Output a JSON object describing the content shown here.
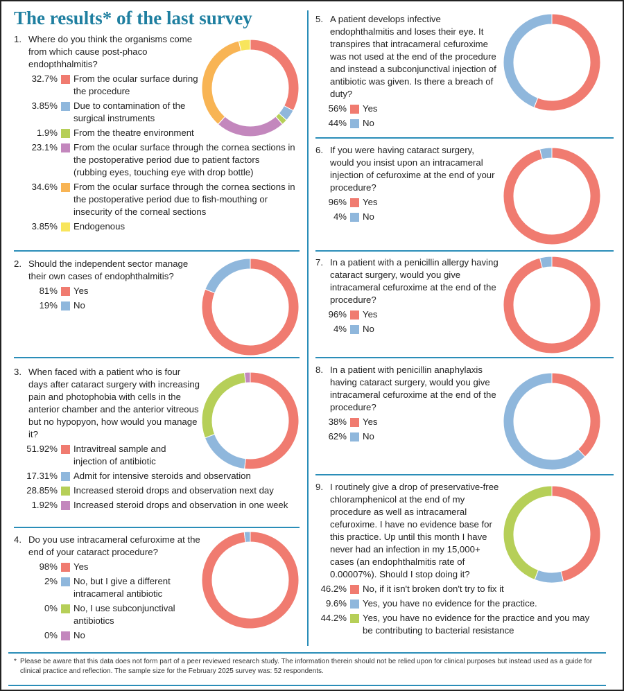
{
  "title": "The results* of the last survey",
  "footnote": {
    "marker": "*",
    "text": "Please be aware that this data does not form part of a peer reviewed research study. The information therein should not be relied upon for clinical purposes but instead used as a guide for clinical practice and reflection. The sample size for the February 2025 survey was: 52 respondents."
  },
  "colors": {
    "red": "#f07b70",
    "blue": "#8fb7dc",
    "green": "#b6cf58",
    "purple": "#c387bd",
    "orange": "#f8b454",
    "yellow": "#f8e55c",
    "accent": "#1f7fa0",
    "rule": "#2a8db8"
  },
  "chart_data": [
    {
      "type": "pie",
      "number": "1.",
      "title": "Where do you think the organisms come from which cause post-phaco endopthhalmitis?",
      "series": [
        {
          "label": "From the ocular surface during the procedure",
          "pct_label": "32.7%",
          "value": 32.7,
          "color": "#f07b70"
        },
        {
          "label": "Due to contamination of the surgical instruments",
          "pct_label": "3.85%",
          "value": 3.85,
          "color": "#8fb7dc"
        },
        {
          "label": "From the theatre environment",
          "pct_label": "1.9%",
          "value": 1.9,
          "color": "#b6cf58"
        },
        {
          "label": "From the ocular surface through the cornea sections in the postoperative period due to patient factors (rubbing eyes, touching eye with drop bottle)",
          "pct_label": "23.1%",
          "value": 23.1,
          "color": "#c387bd"
        },
        {
          "label": "From the ocular surface through the cornea sections in the postoperative period due to fish-mouthing or insecurity of the corneal sections",
          "pct_label": "34.6%",
          "value": 34.6,
          "color": "#f8b454"
        },
        {
          "label": "Endogenous",
          "pct_label": "3.85%",
          "value": 3.85,
          "color": "#f8e55c"
        }
      ]
    },
    {
      "type": "pie",
      "number": "2.",
      "title": "Should the independent sector manage their own cases of endophthalmitis?",
      "series": [
        {
          "label": "Yes",
          "pct_label": "81%",
          "value": 81,
          "color": "#f07b70"
        },
        {
          "label": "No",
          "pct_label": "19%",
          "value": 19,
          "color": "#8fb7dc"
        }
      ]
    },
    {
      "type": "pie",
      "number": "3.",
      "title": "When faced with a patient who is four days after cataract surgery with increasing pain and photophobia with cells in the anterior chamber and the anterior vitreous but no hypopyon, how would you manage it?",
      "series": [
        {
          "label": "Intravitreal sample and injection of antibiotic",
          "pct_label": "51.92%",
          "value": 51.92,
          "color": "#f07b70"
        },
        {
          "label": "Admit for intensive steroids and observation",
          "pct_label": "17.31%",
          "value": 17.31,
          "color": "#8fb7dc"
        },
        {
          "label": "Increased steroid drops and observation next day",
          "pct_label": "28.85%",
          "value": 28.85,
          "color": "#b6cf58"
        },
        {
          "label": "Increased steroid drops and observation in one week",
          "pct_label": "1.92%",
          "value": 1.92,
          "color": "#c387bd"
        }
      ]
    },
    {
      "type": "pie",
      "number": "4.",
      "title": "Do you use intracameral cefuroxime at the end of your cataract procedure?",
      "series": [
        {
          "label": "Yes",
          "pct_label": "98%",
          "value": 98,
          "color": "#f07b70"
        },
        {
          "label": "No, but I give a different intracameral antibiotic",
          "pct_label": "2%",
          "value": 2,
          "color": "#8fb7dc"
        },
        {
          "label": "No, I use subconjunctival antibiotics",
          "pct_label": "0%",
          "value": 0,
          "color": "#b6cf58"
        },
        {
          "label": "No",
          "pct_label": "0%",
          "value": 0,
          "color": "#c387bd"
        }
      ]
    },
    {
      "type": "pie",
      "number": "5.",
      "title": "A patient develops infective endophthalmitis and loses their eye. It transpires that intracameral cefuroxime was not used at the end of the procedure and instead a subconjunctival injection of antibiotic was given. Is there a breach of duty?",
      "series": [
        {
          "label": "Yes",
          "pct_label": "56%",
          "value": 56,
          "color": "#f07b70"
        },
        {
          "label": "No",
          "pct_label": "44%",
          "value": 44,
          "color": "#8fb7dc"
        }
      ]
    },
    {
      "type": "pie",
      "number": "6.",
      "title": "If you were having cataract surgery, would you insist upon an intracameral injection of cefuroxime at the end of your procedure?",
      "series": [
        {
          "label": "Yes",
          "pct_label": "96%",
          "value": 96,
          "color": "#f07b70"
        },
        {
          "label": "No",
          "pct_label": "4%",
          "value": 4,
          "color": "#8fb7dc"
        }
      ]
    },
    {
      "type": "pie",
      "number": "7.",
      "title": "In a patient with a penicillin allergy having cataract surgery, would you give intracameral cefuroxime at the end of the procedure?",
      "series": [
        {
          "label": "Yes",
          "pct_label": "96%",
          "value": 96,
          "color": "#f07b70"
        },
        {
          "label": "No",
          "pct_label": "4%",
          "value": 4,
          "color": "#8fb7dc"
        }
      ]
    },
    {
      "type": "pie",
      "number": "8.",
      "title": "In a patient with penicillin anaphylaxis having cataract surgery, would you give intracameral cefuroxime at the end of the procedure?",
      "series": [
        {
          "label": "Yes",
          "pct_label": "38%",
          "value": 38,
          "color": "#f07b70"
        },
        {
          "label": "No",
          "pct_label": "62%",
          "value": 62,
          "color": "#8fb7dc"
        }
      ]
    },
    {
      "type": "pie",
      "number": "9.",
      "title": "I routinely give a drop of preservative-free chloramphenicol at the end of my procedure as well as intracameral cefuroxime. I have no evidence base for this practice. Up until this month I have never had an infection in my 15,000+ cases (an endophthalmitis rate of 0.00007%). Should I stop doing it?",
      "series": [
        {
          "label": "No, if it isn't broken don't try to fix it",
          "pct_label": "46.2%",
          "value": 46.2,
          "color": "#f07b70"
        },
        {
          "label": "Yes, you have no evidence for the practice.",
          "pct_label": "9.6%",
          "value": 9.6,
          "color": "#8fb7dc"
        },
        {
          "label": "Yes, you have no evidence for the practice and you may be contributing to bacterial resistance",
          "pct_label": "44.2%",
          "value": 44.2,
          "color": "#b6cf58"
        }
      ]
    }
  ]
}
